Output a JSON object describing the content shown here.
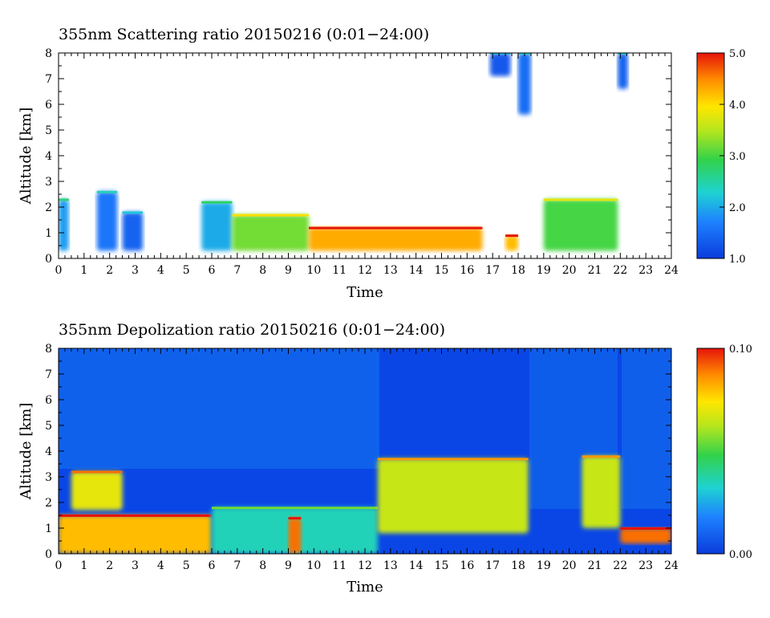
{
  "chart_data": [
    {
      "type": "heatmap",
      "title": "355nm Scattering ratio  20150216 (0:01−24:00)",
      "xlabel": "Time",
      "ylabel": "Altitude [km]",
      "xlim": [
        0,
        24
      ],
      "ylim": [
        0,
        8
      ],
      "x_ticks": [
        "0",
        "1",
        "2",
        "3",
        "4",
        "5",
        "6",
        "7",
        "8",
        "9",
        "10",
        "11",
        "12",
        "13",
        "14",
        "15",
        "16",
        "17",
        "18",
        "19",
        "20",
        "21",
        "22",
        "23",
        "24"
      ],
      "y_ticks": [
        "0",
        "1",
        "2",
        "3",
        "4",
        "5",
        "6",
        "7",
        "8"
      ],
      "colorbar": {
        "min": 1.0,
        "max": 5.0,
        "tick_labels": [
          "1.0",
          "2.0",
          "3.0",
          "4.0",
          "5.0"
        ]
      },
      "features": [
        {
          "x0": 0.0,
          "x1": 0.4,
          "base": 0.3,
          "top": 2.3,
          "value": 1.9
        },
        {
          "x0": 1.5,
          "x1": 2.3,
          "base": 0.3,
          "top": 2.6,
          "value": 1.6
        },
        {
          "x0": 2.5,
          "x1": 3.3,
          "base": 0.3,
          "top": 1.8,
          "value": 1.4
        },
        {
          "x0": 5.6,
          "x1": 6.8,
          "base": 0.3,
          "top": 2.2,
          "value": 2.0
        },
        {
          "x0": 6.8,
          "x1": 9.8,
          "base": 0.3,
          "top": 1.7,
          "value": 3.2
        },
        {
          "x0": 9.8,
          "x1": 16.6,
          "base": 0.3,
          "top": 1.2,
          "value": 4.3
        },
        {
          "x0": 17.5,
          "x1": 18.0,
          "base": 0.3,
          "top": 0.9,
          "value": 4.2
        },
        {
          "x0": 19.0,
          "x1": 21.9,
          "base": 0.3,
          "top": 2.3,
          "value": 3.0
        },
        {
          "x0": 16.9,
          "x1": 17.7,
          "base": 7.1,
          "top": 8.0,
          "value": 1.3
        },
        {
          "x0": 18.0,
          "x1": 18.5,
          "base": 5.6,
          "top": 8.0,
          "value": 1.5
        },
        {
          "x0": 21.9,
          "x1": 22.3,
          "base": 6.6,
          "top": 8.0,
          "value": 1.4
        }
      ]
    },
    {
      "type": "heatmap",
      "title": "355nm Depolization ratio  20150216 (0:01−24:00)",
      "xlabel": "Time",
      "ylabel": "Altitude [km]",
      "xlim": [
        0,
        24
      ],
      "ylim": [
        0,
        8
      ],
      "x_ticks": [
        "0",
        "1",
        "2",
        "3",
        "4",
        "5",
        "6",
        "7",
        "8",
        "9",
        "10",
        "11",
        "12",
        "13",
        "14",
        "15",
        "16",
        "17",
        "18",
        "19",
        "20",
        "21",
        "22",
        "23",
        "24"
      ],
      "y_ticks": [
        "0",
        "1",
        "2",
        "3",
        "4",
        "5",
        "6",
        "7",
        "8"
      ],
      "colorbar": {
        "min": 0.0,
        "max": 0.1,
        "tick_labels": [
          "0.00",
          "0.10"
        ]
      },
      "features": [
        {
          "x0": 0.0,
          "x1": 6.0,
          "base": 0.0,
          "top": 1.5,
          "value": 0.08
        },
        {
          "x0": 0.5,
          "x1": 2.5,
          "base": 1.7,
          "top": 3.2,
          "value": 0.07
        },
        {
          "x0": 6.0,
          "x1": 12.5,
          "base": 0.0,
          "top": 1.8,
          "value": 0.035
        },
        {
          "x0": 9.0,
          "x1": 9.5,
          "base": 0.0,
          "top": 1.4,
          "value": 0.09
        },
        {
          "x0": 12.5,
          "x1": 18.4,
          "base": 0.8,
          "top": 3.7,
          "value": 0.065
        },
        {
          "x0": 20.5,
          "x1": 22.0,
          "base": 1.0,
          "top": 3.8,
          "value": 0.065
        },
        {
          "x0": 22.0,
          "x1": 24.0,
          "base": 0.4,
          "top": 1.0,
          "value": 0.09
        }
      ]
    }
  ]
}
